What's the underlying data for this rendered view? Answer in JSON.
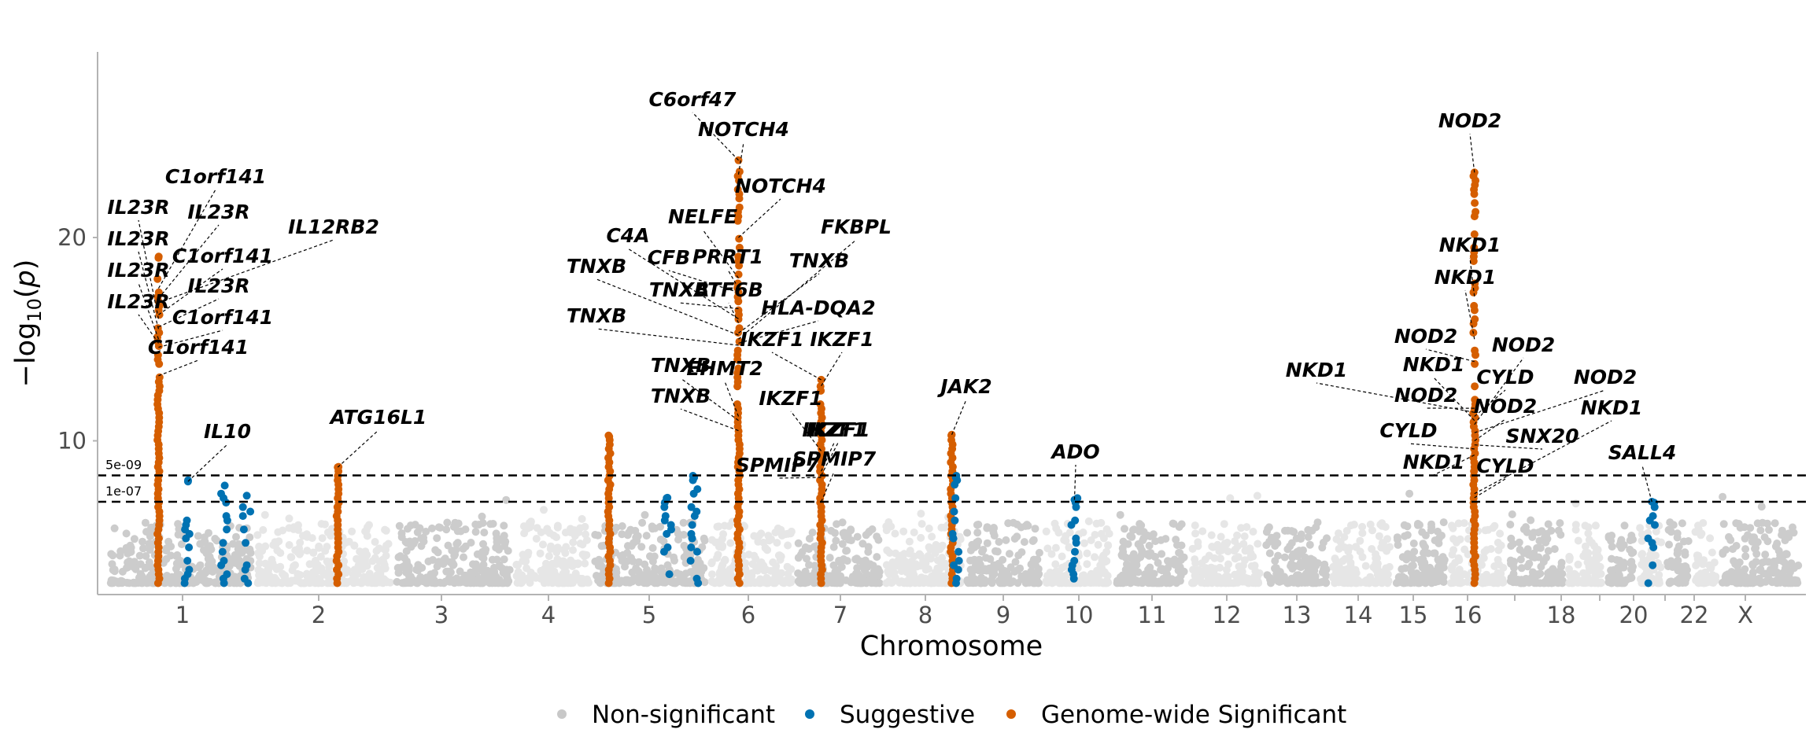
{
  "chart_data": {
    "type": "scatter",
    "subtype": "manhattan",
    "xlabel": "Chromosome",
    "ylabel_prefix": "−log",
    "ylabel_sub": "10",
    "ylabel_var": "p",
    "ylim": [
      2.5,
      29
    ],
    "yticks": [
      10,
      20
    ],
    "grid": false,
    "legend_position": "bottom",
    "chromosomes": [
      "1",
      "2",
      "3",
      "4",
      "5",
      "6",
      "7",
      "8",
      "9",
      "10",
      "11",
      "12",
      "13",
      "14",
      "15",
      "16",
      "17",
      "18",
      "19",
      "20",
      "21",
      "22",
      "X"
    ],
    "chromosome_tick_labels": [
      "1",
      "2",
      "3",
      "4",
      "5",
      "6",
      "7",
      "8",
      "9",
      "10",
      "11",
      "12",
      "13",
      "14",
      "15",
      "16",
      "",
      "18",
      "",
      "20",
      "",
      "22",
      "X"
    ],
    "thresholds": [
      {
        "label": "5e-09",
        "value": 8.3
      },
      {
        "label": "1e-07",
        "value": 7.0
      }
    ],
    "series": [
      {
        "name": "Non-significant",
        "color": "#c8c8c8"
      },
      {
        "name": "Suggestive",
        "color": "#0072b2"
      },
      {
        "name": "Genome-wide Significant",
        "color": "#d55e00"
      }
    ],
    "loci": [
      {
        "chr": "1",
        "pos": 0.35,
        "peak": 19.0,
        "class": "significant"
      },
      {
        "chr": "1",
        "pos": 0.55,
        "peak": 8.0,
        "class": "suggestive"
      },
      {
        "chr": "1",
        "pos": 0.8,
        "peak": 7.8,
        "class": "suggestive"
      },
      {
        "chr": "1",
        "pos": 0.95,
        "peak": 7.3,
        "class": "suggestive"
      },
      {
        "chr": "2",
        "pos": 0.6,
        "peak": 8.7,
        "class": "significant"
      },
      {
        "chr": "5",
        "pos": 0.15,
        "peak": 10.2,
        "class": "significant"
      },
      {
        "chr": "5",
        "pos": 0.65,
        "peak": 7.2,
        "class": "suggestive"
      },
      {
        "chr": "5",
        "pos": 0.88,
        "peak": 8.2,
        "class": "suggestive"
      },
      {
        "chr": "6",
        "pos": 0.35,
        "peak": 23.8,
        "class": "significant"
      },
      {
        "chr": "7",
        "pos": 0.3,
        "peak": 13.0,
        "class": "significant"
      },
      {
        "chr": "8",
        "pos": 0.85,
        "peak": 10.3,
        "class": "significant"
      },
      {
        "chr": "8",
        "pos": 0.9,
        "peak": 8.2,
        "class": "suggestive"
      },
      {
        "chr": "10",
        "pos": 0.45,
        "peak": 7.1,
        "class": "suggestive"
      },
      {
        "chr": "16",
        "pos": 0.45,
        "peak": 23.2,
        "class": "significant"
      },
      {
        "chr": "20",
        "pos": 0.55,
        "peak": 7.0,
        "class": "suggestive"
      }
    ],
    "annotations": [
      {
        "text": "C6orf47",
        "chr": "6",
        "pos": 0.35,
        "y": 23.8
      },
      {
        "text": "NOTCH4",
        "chr": "6",
        "pos": 0.35,
        "y": 23.1
      },
      {
        "text": "NOTCH4",
        "chr": "6",
        "pos": 0.35,
        "y": 20.0
      },
      {
        "text": "NELFE",
        "chr": "6",
        "pos": 0.35,
        "y": 18.0
      },
      {
        "text": "C4A",
        "chr": "6",
        "pos": 0.35,
        "y": 16.0
      },
      {
        "text": "CFB",
        "chr": "6",
        "pos": 0.35,
        "y": 17.3
      },
      {
        "text": "PRRT1",
        "chr": "6",
        "pos": 0.35,
        "y": 17.5
      },
      {
        "text": "FKBPL",
        "chr": "6",
        "pos": 0.35,
        "y": 15.0
      },
      {
        "text": "TNXB",
        "chr": "6",
        "pos": 0.35,
        "y": 15.2
      },
      {
        "text": "TNXB",
        "chr": "6",
        "pos": 0.35,
        "y": 16.5
      },
      {
        "text": "ATF6B",
        "chr": "6",
        "pos": 0.35,
        "y": 15.8
      },
      {
        "text": "TNXB",
        "chr": "6",
        "pos": 0.35,
        "y": 15.3
      },
      {
        "text": "HLA-DQA2",
        "chr": "6",
        "pos": 0.35,
        "y": 14.8
      },
      {
        "text": "TNXB",
        "chr": "6",
        "pos": 0.35,
        "y": 14.7
      },
      {
        "text": "TNXB",
        "chr": "6",
        "pos": 0.35,
        "y": 11.0
      },
      {
        "text": "EHMT2",
        "chr": "6",
        "pos": 0.35,
        "y": 11.2
      },
      {
        "text": "TNXB",
        "chr": "6",
        "pos": 0.35,
        "y": 10.5
      },
      {
        "text": "IKZF1",
        "chr": "7",
        "pos": 0.3,
        "y": 13.0
      },
      {
        "text": "IKZF1",
        "chr": "7",
        "pos": 0.3,
        "y": 12.7
      },
      {
        "text": "IKZF1",
        "chr": "7",
        "pos": 0.3,
        "y": 9.5
      },
      {
        "text": "IKZF1",
        "chr": "7",
        "pos": 0.3,
        "y": 8.3
      },
      {
        "text": "IKZF1",
        "chr": "7",
        "pos": 0.3,
        "y": 8.5
      },
      {
        "text": "SPMIP7",
        "chr": "7",
        "pos": 0.3,
        "y": 8.2
      },
      {
        "text": "SPMIP7",
        "chr": "7",
        "pos": 0.3,
        "y": 7.0
      },
      {
        "text": "IL23R",
        "chr": "1",
        "pos": 0.35,
        "y": 16.0
      },
      {
        "text": "IL23R",
        "chr": "1",
        "pos": 0.35,
        "y": 15.5
      },
      {
        "text": "IL23R",
        "chr": "1",
        "pos": 0.35,
        "y": 15.0
      },
      {
        "text": "IL23R",
        "chr": "1",
        "pos": 0.35,
        "y": 14.8
      },
      {
        "text": "C1orf141",
        "chr": "1",
        "pos": 0.35,
        "y": 17.5
      },
      {
        "text": "IL23R",
        "chr": "1",
        "pos": 0.35,
        "y": 17.0
      },
      {
        "text": "IL12RB2",
        "chr": "1",
        "pos": 0.35,
        "y": 16.8
      },
      {
        "text": "C1orf141",
        "chr": "1",
        "pos": 0.35,
        "y": 16.2
      },
      {
        "text": "IL23R",
        "chr": "1",
        "pos": 0.35,
        "y": 15.6
      },
      {
        "text": "C1orf141",
        "chr": "1",
        "pos": 0.35,
        "y": 14.6
      },
      {
        "text": "C1orf141",
        "chr": "1",
        "pos": 0.35,
        "y": 13.2
      },
      {
        "text": "IL10",
        "chr": "1",
        "pos": 0.55,
        "y": 8.0
      },
      {
        "text": "ATG16L1",
        "chr": "2",
        "pos": 0.6,
        "y": 8.7
      },
      {
        "text": "JAK2",
        "chr": "8",
        "pos": 0.85,
        "y": 10.3
      },
      {
        "text": "ADO",
        "chr": "10",
        "pos": 0.45,
        "y": 7.1
      },
      {
        "text": "NOD2",
        "chr": "16",
        "pos": 0.45,
        "y": 23.2
      },
      {
        "text": "NKD1",
        "chr": "16",
        "pos": 0.45,
        "y": 17.1
      },
      {
        "text": "NKD1",
        "chr": "16",
        "pos": 0.45,
        "y": 15.0
      },
      {
        "text": "NOD2",
        "chr": "16",
        "pos": 0.45,
        "y": 13.9
      },
      {
        "text": "NOD2",
        "chr": "16",
        "pos": 0.45,
        "y": 11.6
      },
      {
        "text": "NKD1",
        "chr": "16",
        "pos": 0.45,
        "y": 11.4
      },
      {
        "text": "NKD1",
        "chr": "16",
        "pos": 0.45,
        "y": 11.0
      },
      {
        "text": "CYLD",
        "chr": "16",
        "pos": 0.45,
        "y": 11.2
      },
      {
        "text": "NOD2",
        "chr": "16",
        "pos": 0.45,
        "y": 10.8
      },
      {
        "text": "NOD2",
        "chr": "16",
        "pos": 0.45,
        "y": 10.4
      },
      {
        "text": "NOD2",
        "chr": "16",
        "pos": 0.45,
        "y": 10.0
      },
      {
        "text": "CYLD",
        "chr": "16",
        "pos": 0.45,
        "y": 9.6
      },
      {
        "text": "SNX20",
        "chr": "16",
        "pos": 0.45,
        "y": 9.8
      },
      {
        "text": "NKD1",
        "chr": "16",
        "pos": 0.45,
        "y": 9.3
      },
      {
        "text": "NKD1",
        "chr": "16",
        "pos": 0.45,
        "y": 7.4
      },
      {
        "text": "CYLD",
        "chr": "16",
        "pos": 0.45,
        "y": 7.2
      },
      {
        "text": "SALL4",
        "chr": "20",
        "pos": 0.55,
        "y": 7.0
      }
    ]
  }
}
